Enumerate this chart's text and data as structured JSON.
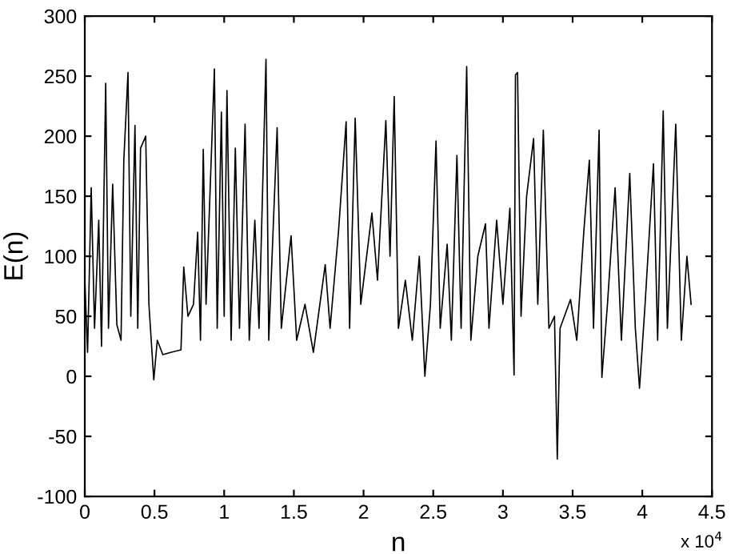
{
  "chart_data": {
    "type": "line",
    "xlabel": "n",
    "ylabel": "E(n)",
    "x": [
      0,
      0.02,
      0.046,
      0.07,
      0.1,
      0.12,
      0.15,
      0.17,
      0.2,
      0.23,
      0.26,
      0.28,
      0.31,
      0.33,
      0.36,
      0.38,
      0.4,
      0.437,
      0.46,
      0.495,
      0.52,
      0.56,
      0.62,
      0.69,
      0.71,
      0.74,
      0.78,
      0.81,
      0.83,
      0.85,
      0.87,
      0.93,
      0.95,
      0.98,
      1.0,
      1.02,
      1.05,
      1.08,
      1.11,
      1.15,
      1.18,
      1.22,
      1.25,
      1.3,
      1.32,
      1.38,
      1.41,
      1.48,
      1.52,
      1.58,
      1.64,
      1.725,
      1.76,
      1.82,
      1.875,
      1.9,
      1.94,
      1.98,
      2.06,
      2.1,
      2.16,
      2.19,
      2.22,
      2.25,
      2.3,
      2.35,
      2.4,
      2.44,
      2.48,
      2.52,
      2.55,
      2.6,
      2.63,
      2.67,
      2.7,
      2.74,
      2.77,
      2.82,
      2.875,
      2.9,
      2.955,
      3.0,
      3.05,
      3.08,
      3.09,
      3.105,
      3.13,
      3.17,
      3.22,
      3.25,
      3.29,
      3.33,
      3.37,
      3.39,
      3.41,
      3.485,
      3.53,
      3.58,
      3.62,
      3.65,
      3.69,
      3.71,
      3.75,
      3.805,
      3.85,
      3.91,
      3.95,
      3.98,
      4.02,
      4.08,
      4.11,
      4.15,
      4.18,
      4.24,
      4.28,
      4.32,
      4.35
    ],
    "series": [
      {
        "color": "#000000",
        "values": [
          80,
          20,
          157,
          40,
          130,
          25,
          244,
          40,
          160,
          43,
          30,
          180,
          253,
          50,
          209,
          40,
          190,
          200,
          60,
          -3,
          30,
          18,
          20,
          22,
          91,
          50,
          60,
          120,
          30,
          189,
          60,
          256,
          40,
          220,
          50,
          238,
          30,
          190,
          40,
          210,
          30,
          130,
          40,
          264,
          30,
          207,
          40,
          117,
          30,
          60,
          20,
          93,
          40,
          120,
          212,
          40,
          215,
          60,
          136,
          80,
          213,
          100,
          233,
          40,
          80,
          30,
          100,
          0,
          60,
          196,
          40,
          110,
          30,
          184,
          40,
          258,
          30,
          100,
          127,
          40,
          130,
          60,
          140,
          1,
          251,
          253,
          50,
          150,
          198,
          60,
          205,
          40,
          50,
          -69,
          40,
          64,
          30,
          120,
          180,
          40,
          205,
          -1,
          60,
          157,
          30,
          169,
          40,
          -10,
          60,
          177,
          30,
          221,
          40,
          210,
          30,
          100,
          60
        ]
      }
    ],
    "xlim": [
      0,
      4.5
    ],
    "xticks": [
      0,
      0.5,
      1,
      1.5,
      2,
      2.5,
      3,
      3.5,
      4,
      4.5
    ],
    "ylim": [
      -100,
      300
    ],
    "yticks": [
      -100,
      -50,
      0,
      50,
      100,
      150,
      200,
      250,
      300
    ],
    "annotations": [
      "x 10$^{4}$"
    ],
    "grid": false,
    "legend": false
  }
}
